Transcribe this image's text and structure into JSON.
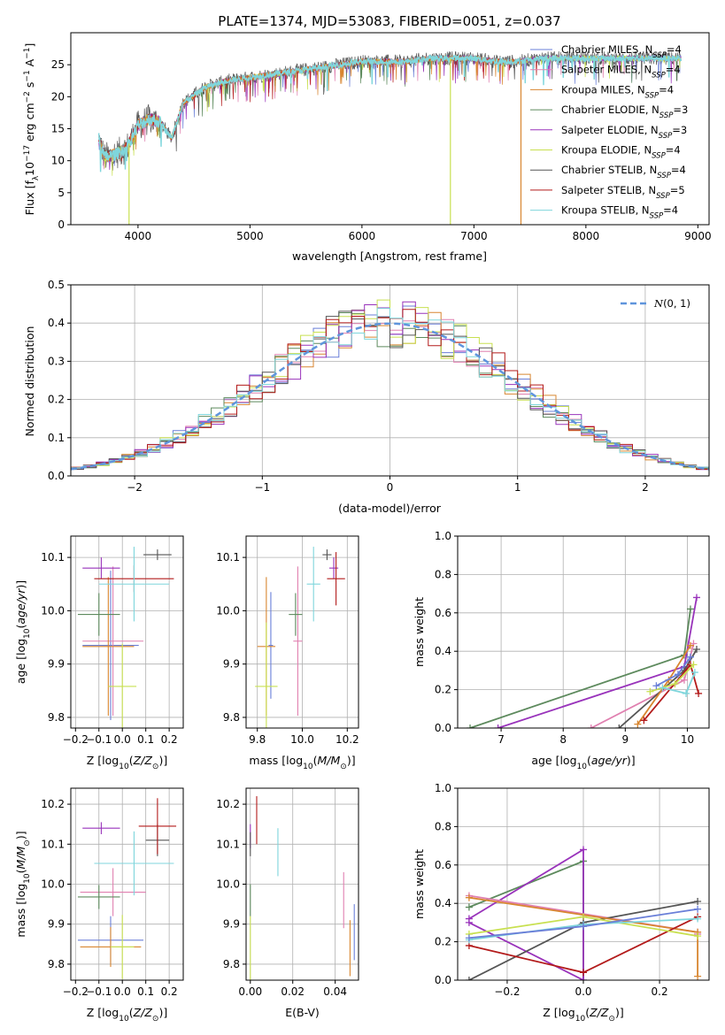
{
  "figure": {
    "title": "PLATE=1374, MJD=53083, FIBERID=0051, z=0.037"
  },
  "colors": {
    "chabrier_miles": "#6a7fd8",
    "salpeter_miles": "#e080b0",
    "kroupa_miles": "#d88630",
    "chabrier_elodie": "#5d8a5d",
    "salpeter_elodie": "#9933bb",
    "kroupa_elodie": "#c8e050",
    "chabrier_stelib": "#555555",
    "salpeter_stelib": "#b31b1b",
    "kroupa_stelib": "#7fd6dc",
    "normal_curve": "#5f95dc",
    "grid": "#b0b0b0"
  },
  "chart_data": [
    {
      "id": "spectrum",
      "type": "line",
      "title": "PLATE=1374, MJD=53083, FIBERID=0051, z=0.037",
      "xlabel": "wavelength [Angstrom, rest frame]",
      "ylabel_parts": [
        "Flux [f",
        "λ",
        "10",
        "−17",
        " erg cm",
        "−2",
        " s",
        "−1",
        " A",
        "−1",
        "]"
      ],
      "xlim": [
        3400,
        9100
      ],
      "ylim": [
        0,
        30
      ],
      "xticks": [
        4000,
        5000,
        6000,
        7000,
        8000,
        9000
      ],
      "yticks": [
        0,
        5,
        10,
        15,
        20,
        25
      ],
      "grid": false,
      "legend_position": "top-right",
      "legend": [
        {
          "name": "Chabrier MILES, N",
          "sub": "SSP",
          "tail": "=4",
          "color": "chabrier_miles"
        },
        {
          "name": "Salpeter MILES, N",
          "sub": "SSP",
          "tail": "=4",
          "color": "salpeter_miles"
        },
        {
          "name": "Kroupa MILES, N",
          "sub": "SSP",
          "tail": "=4",
          "color": "kroupa_miles"
        },
        {
          "name": "Chabrier ELODIE, N",
          "sub": "SSP",
          "tail": "=3",
          "color": "chabrier_elodie"
        },
        {
          "name": "Salpeter ELODIE, N",
          "sub": "SSP",
          "tail": "=3",
          "color": "salpeter_elodie"
        },
        {
          "name": "Kroupa ELODIE, N",
          "sub": "SSP",
          "tail": "=4",
          "color": "kroupa_elodie"
        },
        {
          "name": "Chabrier STELIB, N",
          "sub": "SSP",
          "tail": "=4",
          "color": "chabrier_stelib"
        },
        {
          "name": "Salpeter STELIB, N",
          "sub": "SSP",
          "tail": "=5",
          "color": "salpeter_stelib"
        },
        {
          "name": "Kroupa STELIB, N",
          "sub": "SSP",
          "tail": "=4",
          "color": "kroupa_stelib"
        }
      ],
      "continuum": {
        "x": [
          3650,
          3700,
          3800,
          3900,
          4000,
          4100,
          4200,
          4300,
          4400,
          4600,
          4800,
          5000,
          5200,
          5400,
          5600,
          5800,
          6000,
          6200,
          6400,
          6600,
          6800,
          7000,
          7200,
          7400,
          7600,
          7800,
          8000,
          8200,
          8500,
          8800
        ],
        "y": [
          13.5,
          10.5,
          11,
          12,
          15.5,
          16.5,
          16,
          13.5,
          19,
          21.5,
          22.5,
          23,
          23.5,
          24,
          24.5,
          25,
          25.5,
          25.5,
          25.5,
          26,
          26,
          26,
          25.5,
          25.5,
          26,
          26,
          26,
          26,
          26,
          26
        ]
      },
      "drops": [
        {
          "x": 3920,
          "y": 0,
          "color": "kroupa_elodie"
        },
        {
          "x": 6790,
          "y": 0,
          "color": "kroupa_elodie"
        },
        {
          "x": 7420,
          "y": 0,
          "color": "kroupa_miles"
        }
      ]
    },
    {
      "id": "residuals",
      "type": "step",
      "xlabel": "(data-model)/error",
      "ylabel": "Normed distribution",
      "xlim": [
        -2.5,
        2.5
      ],
      "ylim": [
        0,
        0.5
      ],
      "xticks": [
        -2,
        -1,
        0,
        1,
        2
      ],
      "xticklabels": [
        "−2",
        "−1",
        "0",
        "1",
        "2"
      ],
      "yticks": [
        0.0,
        0.1,
        0.2,
        0.3,
        0.4,
        0.5
      ],
      "yticklabels": [
        "0.0",
        "0.1",
        "0.2",
        "0.3",
        "0.4",
        "0.5"
      ],
      "grid": true,
      "legend_position": "top-right",
      "normal_label": "N(0, 1)",
      "bin_width": 0.1,
      "bin_start": -2.5
    },
    {
      "id": "age_vs_Z",
      "type": "errorbar",
      "xlabel": "Z [log10(Z/Z⊙)]",
      "ylabel": "age  [log10(age/yr)]",
      "xlim": [
        -0.22,
        0.26
      ],
      "ylim": [
        9.78,
        10.14
      ],
      "xticks": [
        -0.2,
        -0.1,
        0.0,
        0.1,
        0.2
      ],
      "xticklabels": [
        "−0.2",
        "−0.1",
        "0.0",
        "0.1",
        "0.2"
      ],
      "yticks": [
        9.8,
        9.9,
        10.0,
        10.1
      ],
      "yticklabels": [
        "9.8",
        "9.9",
        "10.0",
        "10.1"
      ],
      "grid": true,
      "points": [
        {
          "color": "chabrier_miles",
          "x": -0.05,
          "xerr": 0.12,
          "y": 9.935,
          "yerr": 0.14
        },
        {
          "color": "salpeter_miles",
          "x": -0.04,
          "xerr": 0.13,
          "y": 9.943,
          "yerr": 0.14
        },
        {
          "color": "kroupa_miles",
          "x": -0.06,
          "xerr": 0.11,
          "y": 9.933,
          "yerr": 0.13
        },
        {
          "color": "chabrier_elodie",
          "x": -0.1,
          "xerr": 0.09,
          "y": 9.993,
          "yerr": 0.04
        },
        {
          "color": "salpeter_elodie",
          "x": -0.09,
          "xerr": 0.08,
          "y": 10.08,
          "yerr": 0.02
        },
        {
          "color": "kroupa_elodie",
          "x": 0.0,
          "xerr": 0.06,
          "y": 9.858,
          "yerr": 0.08
        },
        {
          "color": "chabrier_stelib",
          "x": 0.15,
          "xerr": 0.06,
          "y": 10.105,
          "yerr": 0.01
        },
        {
          "color": "salpeter_stelib",
          "x": 0.05,
          "xerr": 0.17,
          "y": 10.06,
          "yerr": 0.025
        },
        {
          "color": "kroupa_stelib",
          "x": 0.05,
          "xerr": 0.15,
          "y": 10.05,
          "yerr": 0.07
        }
      ]
    },
    {
      "id": "age_vs_mass",
      "type": "errorbar",
      "xlabel": "mass [log10(M/M⊙)]",
      "xlim": [
        9.75,
        10.25
      ],
      "ylim": [
        9.78,
        10.14
      ],
      "xticks": [
        9.8,
        10.0,
        10.2
      ],
      "xticklabels": [
        "9.8",
        "10.0",
        "10.2"
      ],
      "yticks": [
        9.8,
        9.9,
        10.0,
        10.1
      ],
      "yticklabels": [
        "9.8",
        "9.9",
        "10.0",
        "10.1"
      ],
      "grid": true,
      "points": [
        {
          "color": "chabrier_miles",
          "x": 9.86,
          "xerr": 0.01,
          "y": 9.935,
          "yerr": 0.1
        },
        {
          "color": "salpeter_miles",
          "x": 9.98,
          "xerr": 0.02,
          "y": 9.943,
          "yerr": 0.14
        },
        {
          "color": "kroupa_miles",
          "x": 9.84,
          "xerr": 0.04,
          "y": 9.933,
          "yerr": 0.13
        },
        {
          "color": "chabrier_elodie",
          "x": 9.97,
          "xerr": 0.03,
          "y": 9.993,
          "yerr": 0.04
        },
        {
          "color": "salpeter_elodie",
          "x": 10.14,
          "xerr": 0.02,
          "y": 10.08,
          "yerr": 0.02
        },
        {
          "color": "kroupa_elodie",
          "x": 9.84,
          "xerr": 0.05,
          "y": 9.858,
          "yerr": 0.12
        },
        {
          "color": "chabrier_stelib",
          "x": 10.11,
          "xerr": 0.02,
          "y": 10.105,
          "yerr": 0.01
        },
        {
          "color": "salpeter_stelib",
          "x": 10.15,
          "xerr": 0.04,
          "y": 10.06,
          "yerr": 0.05
        },
        {
          "color": "kroupa_stelib",
          "x": 10.05,
          "xerr": 0.03,
          "y": 10.05,
          "yerr": 0.07
        }
      ]
    },
    {
      "id": "weight_vs_age",
      "type": "line",
      "xlabel": "age  [log10(age/yr)]",
      "ylabel": "mass weight",
      "xlim": [
        6.3,
        10.35
      ],
      "ylim": [
        0,
        1
      ],
      "xticks": [
        7,
        8,
        9,
        10
      ],
      "yticks": [
        0.0,
        0.2,
        0.4,
        0.6,
        0.8,
        1.0
      ],
      "yticklabels": [
        "0.0",
        "0.2",
        "0.4",
        "0.6",
        "0.8",
        "1.0"
      ],
      "grid": true,
      "series": [
        {
          "color": "chabrier_elodie",
          "x": [
            6.5,
            9.95,
            10.05
          ],
          "y": [
            0.0,
            0.38,
            0.62
          ]
        },
        {
          "color": "salpeter_elodie",
          "x": [
            6.95,
            9.95,
            10.15
          ],
          "y": [
            0.0,
            0.32,
            0.68
          ]
        },
        {
          "color": "salpeter_miles",
          "x": [
            8.45,
            9.95,
            10.1
          ],
          "y": [
            0.0,
            0.25,
            0.44
          ]
        },
        {
          "color": "chabrier_stelib",
          "x": [
            8.9,
            9.95,
            10.15
          ],
          "y": [
            0.0,
            0.3,
            0.41
          ]
        },
        {
          "color": "kroupa_miles",
          "x": [
            9.2,
            9.7,
            10.05
          ],
          "y": [
            0.02,
            0.25,
            0.43
          ]
        },
        {
          "color": "salpeter_stelib",
          "x": [
            9.3,
            10.05,
            10.18
          ],
          "y": [
            0.04,
            0.33,
            0.18
          ]
        },
        {
          "color": "kroupa_elodie",
          "x": [
            9.4,
            9.8,
            10.1
          ],
          "y": [
            0.19,
            0.23,
            0.33
          ]
        },
        {
          "color": "kroupa_stelib",
          "x": [
            9.6,
            9.98,
            10.12
          ],
          "y": [
            0.21,
            0.18,
            0.29
          ]
        },
        {
          "color": "chabrier_miles",
          "x": [
            9.5,
            9.85,
            10.05
          ],
          "y": [
            0.22,
            0.28,
            0.37
          ]
        }
      ]
    },
    {
      "id": "mass_vs_Z",
      "type": "errorbar",
      "xlabel": "Z [log10(Z/Z⊙)]",
      "ylabel": "mass [log10(M/M⊙)]",
      "xlim": [
        -0.22,
        0.26
      ],
      "ylim": [
        9.76,
        10.24
      ],
      "xticks": [
        -0.2,
        -0.1,
        0.0,
        0.1,
        0.2
      ],
      "xticklabels": [
        "−0.2",
        "−0.1",
        "0.0",
        "0.1",
        "0.2"
      ],
      "yticks": [
        9.8,
        9.9,
        10.0,
        10.1,
        10.2
      ],
      "yticklabels": [
        "9.8",
        "9.9",
        "10.0",
        "10.1",
        "10.2"
      ],
      "grid": true,
      "points": [
        {
          "color": "chabrier_miles",
          "x": -0.05,
          "xerr": 0.14,
          "y": 9.86,
          "yerr": 0.06
        },
        {
          "color": "salpeter_miles",
          "x": -0.04,
          "xerr": 0.14,
          "y": 9.98,
          "yerr": 0.06
        },
        {
          "color": "kroupa_miles",
          "x": -0.05,
          "xerr": 0.13,
          "y": 9.843,
          "yerr": 0.05
        },
        {
          "color": "chabrier_elodie",
          "x": -0.1,
          "xerr": 0.09,
          "y": 9.968,
          "yerr": 0.03
        },
        {
          "color": "salpeter_elodie",
          "x": -0.09,
          "xerr": 0.08,
          "y": 10.14,
          "yerr": 0.015
        },
        {
          "color": "kroupa_elodie",
          "x": 0.0,
          "xerr": 0.05,
          "y": 9.843,
          "yerr": 0.08
        },
        {
          "color": "chabrier_stelib",
          "x": 0.15,
          "xerr": 0.05,
          "y": 10.11,
          "yerr": 0.04
        },
        {
          "color": "salpeter_stelib",
          "x": 0.15,
          "xerr": 0.08,
          "y": 10.145,
          "yerr": 0.07
        },
        {
          "color": "kroupa_stelib",
          "x": 0.05,
          "xerr": 0.17,
          "y": 10.052,
          "yerr": 0.08
        }
      ]
    },
    {
      "id": "mass_vs_ebv",
      "type": "errorbar",
      "xlabel": "E(B-V)",
      "xlim": [
        -0.002,
        0.051
      ],
      "ylim": [
        9.76,
        10.24
      ],
      "xticks": [
        0.0,
        0.02,
        0.04
      ],
      "xticklabels": [
        "0.00",
        "0.02",
        "0.04"
      ],
      "yticks": [
        9.8,
        9.9,
        10.0,
        10.1,
        10.2
      ],
      "yticklabels": [
        "9.8",
        "9.9",
        "10.0",
        "10.1",
        "10.2"
      ],
      "grid": true,
      "points": [
        {
          "color": "chabrier_miles",
          "x": 0.049,
          "xerr": 0.0,
          "y": 9.88,
          "yerr": 0.07
        },
        {
          "color": "salpeter_miles",
          "x": 0.044,
          "xerr": 0.0,
          "y": 9.96,
          "yerr": 0.07
        },
        {
          "color": "kroupa_miles",
          "x": 0.047,
          "xerr": 0.0,
          "y": 9.84,
          "yerr": 0.07
        },
        {
          "color": "chabrier_elodie",
          "x": 0.0,
          "xerr": 0.0,
          "y": 9.96,
          "yerr": 0.04
        },
        {
          "color": "salpeter_elodie",
          "x": 0.0,
          "xerr": 0.0,
          "y": 10.12,
          "yerr": 0.03
        },
        {
          "color": "kroupa_elodie",
          "x": 0.0,
          "xerr": 0.0,
          "y": 9.84,
          "yerr": 0.08
        },
        {
          "color": "chabrier_stelib",
          "x": 0.0,
          "xerr": 0.0,
          "y": 10.1,
          "yerr": 0.03
        },
        {
          "color": "salpeter_stelib",
          "x": 0.003,
          "xerr": 0.0,
          "y": 10.16,
          "yerr": 0.06
        },
        {
          "color": "kroupa_stelib",
          "x": 0.013,
          "xerr": 0.0,
          "y": 10.08,
          "yerr": 0.06
        }
      ]
    },
    {
      "id": "weight_vs_Z",
      "type": "line",
      "xlabel": "Z [log10(Z/Z⊙)]",
      "ylabel": "mass weight",
      "xlim": [
        -0.33,
        0.33
      ],
      "ylim": [
        0,
        1
      ],
      "xticks": [
        -0.2,
        0.0,
        0.2
      ],
      "xticklabels": [
        "−0.2",
        "0.0",
        "0.2"
      ],
      "yticks": [
        0.0,
        0.2,
        0.4,
        0.6,
        0.8,
        1.0
      ],
      "yticklabels": [
        "0.0",
        "0.2",
        "0.4",
        "0.6",
        "0.8",
        "1.0"
      ],
      "grid": true,
      "series": [
        {
          "color": "chabrier_elodie",
          "x": [
            -0.3,
            0.0,
            0.0
          ],
          "y": [
            0.38,
            0.62,
            0.0
          ]
        },
        {
          "color": "salpeter_elodie",
          "x": [
            -0.3,
            0.0,
            0.0,
            -0.3
          ],
          "y": [
            0.32,
            0.68,
            0.0,
            0.3
          ]
        },
        {
          "color": "salpeter_miles",
          "x": [
            -0.3,
            0.3,
            0.3
          ],
          "y": [
            0.44,
            0.25,
            0.24
          ]
        },
        {
          "color": "chabrier_stelib",
          "x": [
            -0.3,
            0.0,
            0.3
          ],
          "y": [
            0.0,
            0.3,
            0.41
          ]
        },
        {
          "color": "kroupa_miles",
          "x": [
            -0.3,
            0.3,
            0.3
          ],
          "y": [
            0.43,
            0.25,
            0.02
          ]
        },
        {
          "color": "salpeter_stelib",
          "x": [
            -0.3,
            0.0,
            0.3
          ],
          "y": [
            0.18,
            0.04,
            0.33
          ]
        },
        {
          "color": "kroupa_elodie",
          "x": [
            -0.3,
            0.0,
            0.3
          ],
          "y": [
            0.24,
            0.33,
            0.23
          ]
        },
        {
          "color": "kroupa_stelib",
          "x": [
            -0.3,
            0.0,
            0.3
          ],
          "y": [
            0.21,
            0.29,
            0.32
          ]
        },
        {
          "color": "chabrier_miles",
          "x": [
            -0.3,
            0.0,
            0.3
          ],
          "y": [
            0.22,
            0.28,
            0.37
          ]
        }
      ]
    }
  ]
}
